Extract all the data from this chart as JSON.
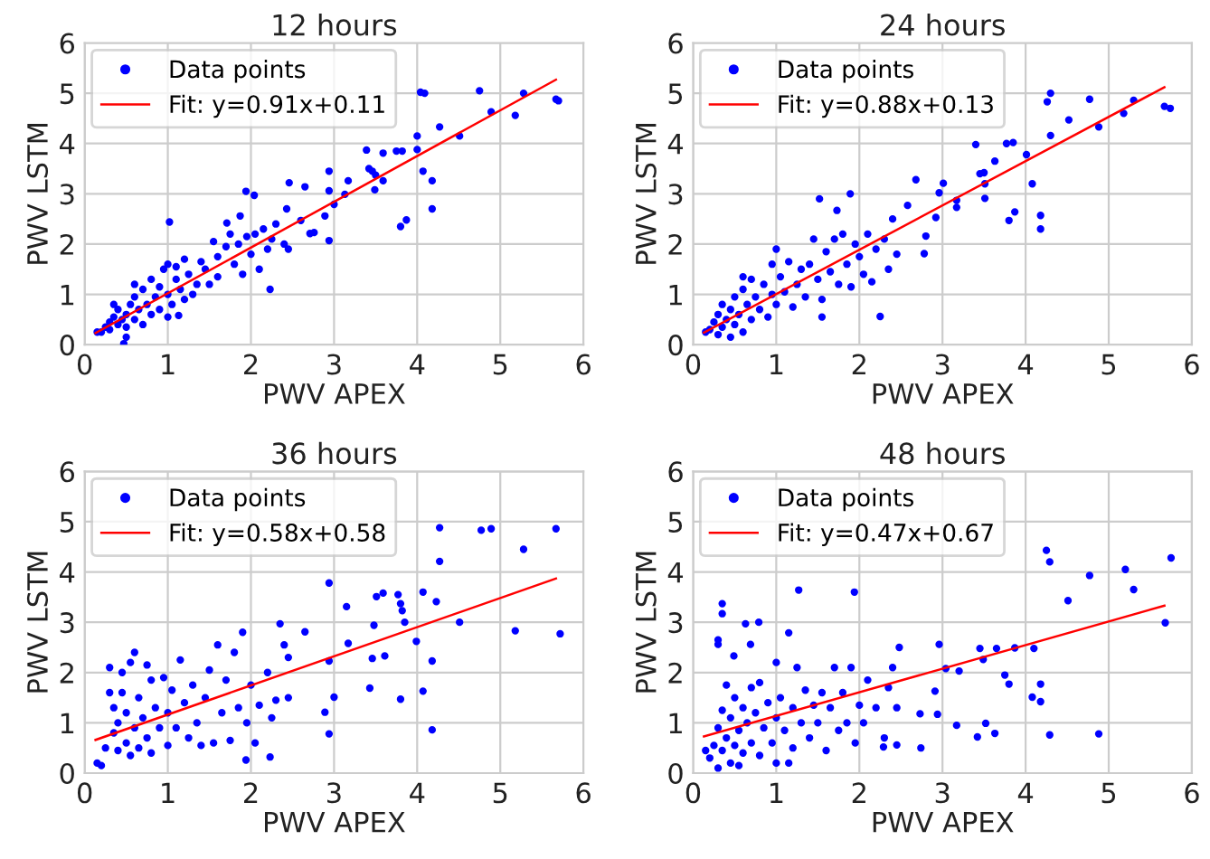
{
  "chart_data": [
    {
      "type": "scatter",
      "title": "12 hours",
      "xlabel": "PWV APEX",
      "ylabel": "PWV LSTM",
      "xlim": [
        0,
        6
      ],
      "ylim": [
        0,
        6
      ],
      "xticks": [
        0,
        1,
        2,
        3,
        4,
        5,
        6
      ],
      "yticks": [
        0,
        1,
        2,
        3,
        4,
        5,
        6
      ],
      "grid": true,
      "legend": "top left",
      "series": [
        {
          "name": "Data points",
          "color": "#0000ff",
          "marker": "circle",
          "x": [
            4.75,
            5.28,
            5.67,
            5.7,
            4.89,
            5.18,
            4.04,
            4.09,
            4.27,
            4.51,
            4.0,
            3.39,
            3.59,
            3.75,
            3.82,
            4.0,
            3.42,
            3.46,
            3.5,
            2.94,
            3.17,
            3.49,
            3.59,
            4.07,
            4.18,
            4.18,
            3.8,
            3.87,
            2.46,
            2.65,
            1.94,
            2.04,
            2.94,
            3.13,
            3.0,
            2.89,
            2.43,
            2.6,
            2.71,
            2.76,
            2.94,
            1.02,
            1.71,
            1.87,
            2.23,
            1.13,
            0.47,
            0.15,
            0.2,
            0.25,
            0.3,
            0.3,
            0.35,
            0.4,
            0.4,
            0.45,
            0.5,
            0.5,
            0.55,
            0.6,
            0.6,
            0.65,
            0.7,
            0.7,
            0.75,
            0.8,
            0.8,
            0.85,
            0.9,
            0.9,
            0.95,
            1.0,
            1.0,
            1.05,
            1.1,
            1.15,
            1.2,
            1.25,
            1.3,
            1.35,
            1.4,
            1.45,
            1.5,
            1.55,
            1.6,
            1.6,
            1.7,
            1.75,
            1.8,
            1.85,
            1.9,
            1.95,
            2.0,
            2.05,
            2.1,
            2.15,
            2.2,
            2.25,
            2.3,
            2.4,
            2.45,
            1.0,
            0.5,
            0.35,
            0.6,
            1.1,
            1.2
          ],
          "values": [
            5.05,
            5.0,
            4.88,
            4.85,
            4.63,
            4.56,
            5.02,
            5.0,
            4.33,
            4.15,
            4.15,
            3.87,
            3.81,
            3.85,
            3.85,
            3.88,
            3.5,
            3.45,
            3.37,
            3.45,
            3.26,
            3.08,
            3.26,
            3.45,
            3.26,
            2.7,
            2.35,
            2.48,
            3.22,
            3.14,
            3.05,
            2.97,
            3.06,
            2.99,
            2.79,
            2.56,
            2.7,
            2.47,
            2.21,
            2.23,
            2.07,
            2.44,
            2.42,
            2.56,
            1.1,
            0.58,
            0.02,
            0.25,
            0.25,
            0.35,
            0.45,
            0.3,
            0.55,
            0.4,
            0.7,
            0.5,
            0.6,
            0.35,
            0.8,
            0.5,
            0.95,
            0.7,
            0.4,
            1.1,
            0.8,
            0.6,
            1.3,
            0.95,
            0.7,
            1.15,
            1.5,
            1.0,
            1.6,
            0.8,
            1.3,
            1.1,
            0.9,
            1.4,
            1.0,
            1.2,
            1.65,
            1.5,
            1.2,
            2.05,
            1.75,
            1.35,
            1.95,
            2.2,
            1.6,
            2.0,
            1.4,
            2.15,
            1.8,
            2.2,
            1.5,
            2.3,
            1.9,
            2.1,
            2.4,
            2.0,
            1.9,
            0.55,
            0.15,
            0.8,
            1.2,
            1.55,
            1.7
          ]
        },
        {
          "name": "Fit: y=0.91x+0.11",
          "color": "#ff0000",
          "type": "line",
          "x": [
            0.13,
            5.67
          ],
          "values": [
            0.23,
            5.27
          ]
        }
      ]
    },
    {
      "type": "scatter",
      "title": "24 hours",
      "xlabel": "PWV APEX",
      "ylabel": "PWV LSTM",
      "xlim": [
        0,
        6
      ],
      "ylim": [
        0,
        6
      ],
      "xticks": [
        0,
        1,
        2,
        3,
        4,
        5,
        6
      ],
      "yticks": [
        0,
        1,
        2,
        3,
        4,
        5,
        6
      ],
      "grid": true,
      "legend": "top left",
      "series": [
        {
          "name": "Data points",
          "color": "#0000ff",
          "marker": "circle",
          "x": [
            4.3,
            4.26,
            4.77,
            5.3,
            5.67,
            5.74,
            4.52,
            4.88,
            5.18,
            4.3,
            4.01,
            3.4,
            3.77,
            3.85,
            3.45,
            3.5,
            3.63,
            2.68,
            3.01,
            2.96,
            3.51,
            4.08,
            3.51,
            3.17,
            3.17,
            3.87,
            3.8,
            4.18,
            4.18,
            2.92,
            2.8,
            2.78,
            2.58,
            1.52,
            1.89,
            2.25,
            1.73,
            0.15,
            0.2,
            0.25,
            0.3,
            0.3,
            0.35,
            0.35,
            0.4,
            0.45,
            0.45,
            0.5,
            0.5,
            0.55,
            0.6,
            0.6,
            0.65,
            0.7,
            0.7,
            0.75,
            0.8,
            0.85,
            0.9,
            0.95,
            0.95,
            1.0,
            1.0,
            1.05,
            1.1,
            1.15,
            1.2,
            1.25,
            1.3,
            1.35,
            1.4,
            1.45,
            1.5,
            1.55,
            1.6,
            1.65,
            1.7,
            1.75,
            1.8,
            1.85,
            1.9,
            1.95,
            2.0,
            2.05,
            2.1,
            2.15,
            2.2,
            2.3,
            2.35,
            2.4,
            2.45,
            1.55,
            0.6
          ],
          "values": [
            5.0,
            4.83,
            4.88,
            4.86,
            4.74,
            4.7,
            4.47,
            4.33,
            4.6,
            4.16,
            3.78,
            3.98,
            4.0,
            4.02,
            3.4,
            3.42,
            3.65,
            3.28,
            3.21,
            3.02,
            3.2,
            3.2,
            2.91,
            2.87,
            2.73,
            2.64,
            2.47,
            2.57,
            2.3,
            2.53,
            2.16,
            1.81,
            2.77,
            2.9,
            3.0,
            0.56,
            2.67,
            0.25,
            0.3,
            0.45,
            0.2,
            0.6,
            0.35,
            0.8,
            0.5,
            0.15,
            0.7,
            0.4,
            0.95,
            0.6,
            0.25,
            1.1,
            0.8,
            0.5,
            1.3,
            0.95,
            0.7,
            1.2,
            0.55,
            1.0,
            1.6,
            1.9,
            0.8,
            1.35,
            1.05,
            1.65,
            0.75,
            1.2,
            1.5,
            0.95,
            1.6,
            2.1,
            1.3,
            0.9,
            1.85,
            1.45,
            2.1,
            1.2,
            2.2,
            1.6,
            1.15,
            2.0,
            1.75,
            1.4,
            2.2,
            1.25,
            1.9,
            2.1,
            1.5,
            2.5,
            1.8,
            0.55,
            1.35
          ]
        },
        {
          "name": "Fit: y=0.88x+0.13",
          "color": "#ff0000",
          "type": "line",
          "x": [
            0.13,
            5.67
          ],
          "values": [
            0.24,
            5.12
          ]
        }
      ]
    },
    {
      "type": "scatter",
      "title": "36 hours",
      "xlabel": "PWV APEX",
      "ylabel": "PWV LSTM",
      "xlim": [
        0,
        6
      ],
      "ylim": [
        0,
        6
      ],
      "xticks": [
        0,
        1,
        2,
        3,
        4,
        5,
        6
      ],
      "yticks": [
        0,
        1,
        2,
        3,
        4,
        5,
        6
      ],
      "grid": true,
      "legend": "top left",
      "series": [
        {
          "name": "Data points",
          "color": "#0000ff",
          "marker": "circle",
          "x": [
            4.27,
            4.77,
            4.89,
            5.67,
            5.28,
            4.27,
            2.94,
            3.59,
            3.51,
            3.77,
            3.8,
            3.82,
            4.07,
            4.23,
            2.35,
            3.15,
            3.48,
            3.85,
            4.51,
            5.18,
            5.72,
            3.99,
            3.17,
            2.65,
            3.46,
            3.61,
            4.18,
            2.94,
            3.43,
            3.8,
            4.07,
            4.18,
            2.94,
            3.0,
            2.89,
            1.94,
            2.23,
            0.15,
            0.2,
            0.25,
            0.3,
            0.3,
            0.35,
            0.35,
            0.4,
            0.4,
            0.45,
            0.45,
            0.5,
            0.5,
            0.55,
            0.55,
            0.6,
            0.6,
            0.65,
            0.65,
            0.7,
            0.75,
            0.75,
            0.8,
            0.8,
            0.85,
            0.9,
            0.95,
            1.0,
            1.0,
            1.05,
            1.1,
            1.15,
            1.2,
            1.25,
            1.3,
            1.35,
            1.4,
            1.45,
            1.5,
            1.55,
            1.6,
            1.65,
            1.7,
            1.75,
            1.8,
            1.85,
            1.9,
            1.95,
            2.0,
            2.05,
            2.1,
            2.2,
            2.25,
            2.3,
            2.4,
            2.45,
            2.45
          ],
          "values": [
            4.88,
            4.83,
            4.86,
            4.86,
            4.45,
            4.21,
            3.78,
            3.58,
            3.51,
            3.55,
            3.37,
            3.23,
            3.6,
            3.41,
            2.97,
            3.31,
            2.94,
            3.0,
            3.0,
            2.83,
            2.77,
            2.62,
            2.58,
            2.81,
            2.28,
            2.33,
            2.23,
            2.23,
            1.69,
            1.47,
            1.63,
            0.86,
            0.78,
            1.51,
            1.21,
            0.26,
            0.32,
            0.2,
            0.15,
            0.5,
            2.1,
            1.6,
            0.8,
            1.3,
            0.45,
            1.0,
            2.0,
            1.6,
            0.6,
            1.2,
            2.2,
            0.35,
            2.4,
            0.9,
            1.5,
            0.5,
            1.1,
            2.15,
            0.7,
            1.85,
            0.4,
            1.3,
            0.9,
            1.9,
            0.55,
            1.2,
            1.65,
            0.9,
            2.25,
            1.4,
            0.7,
            1.75,
            1.0,
            0.55,
            1.5,
            2.05,
            0.6,
            2.55,
            1.2,
            1.85,
            0.65,
            2.4,
            1.3,
            2.8,
            1.0,
            1.75,
            0.6,
            1.35,
            2.0,
            1.1,
            1.45,
            2.55,
            1.5,
            2.3
          ]
        },
        {
          "name": "Fit: y=0.58x+0.58",
          "color": "#ff0000",
          "type": "line",
          "x": [
            0.13,
            5.67
          ],
          "values": [
            0.66,
            3.87
          ]
        }
      ]
    },
    {
      "type": "scatter",
      "title": "48 hours",
      "xlabel": "PWV APEX",
      "ylabel": "PWV LSTM",
      "xlim": [
        0,
        6
      ],
      "ylim": [
        0,
        6
      ],
      "xticks": [
        0,
        1,
        2,
        3,
        4,
        5,
        6
      ],
      "yticks": [
        0,
        1,
        2,
        3,
        4,
        5,
        6
      ],
      "grid": true,
      "legend": "top left",
      "series": [
        {
          "name": "Data points",
          "color": "#0000ff",
          "marker": "circle",
          "x": [
            4.25,
            4.29,
            4.77,
            5.2,
            5.3,
            5.75,
            4.51,
            5.68,
            1.27,
            1.94,
            0.35,
            0.35,
            0.3,
            0.3,
            0.63,
            0.79,
            1.15,
            0.49,
            0.69,
            2.96,
            2.48,
            3.45,
            3.65,
            3.87,
            4.1,
            3.49,
            3.04,
            3.2,
            3.75,
            3.8,
            4.18,
            4.18,
            4.08,
            2.91,
            2.94,
            2.73,
            3.17,
            3.42,
            3.52,
            3.63,
            4.29,
            4.88,
            2.74,
            2.45,
            2.29,
            0.15,
            0.2,
            0.25,
            0.3,
            0.3,
            0.35,
            0.35,
            0.4,
            0.4,
            0.45,
            0.45,
            0.5,
            0.5,
            0.55,
            0.55,
            0.6,
            0.6,
            0.65,
            0.7,
            0.7,
            0.75,
            0.8,
            0.8,
            0.85,
            0.9,
            0.95,
            1.0,
            1.0,
            1.0,
            1.05,
            1.1,
            1.15,
            1.2,
            1.2,
            1.25,
            1.3,
            1.35,
            1.4,
            1.45,
            1.5,
            1.55,
            1.6,
            1.65,
            1.7,
            1.75,
            1.8,
            1.85,
            1.9,
            1.95,
            2.0,
            2.05,
            2.1,
            2.2,
            2.3,
            2.35,
            2.4,
            2.45
          ],
          "values": [
            4.43,
            4.2,
            3.93,
            4.05,
            3.65,
            4.28,
            3.43,
            2.99,
            3.64,
            3.6,
            3.37,
            3.17,
            2.65,
            2.56,
            2.97,
            3.0,
            2.79,
            2.33,
            2.56,
            2.56,
            2.5,
            2.48,
            2.48,
            2.49,
            2.48,
            2.26,
            2.08,
            2.03,
            1.95,
            1.77,
            1.77,
            1.42,
            1.51,
            1.63,
            1.17,
            1.18,
            0.95,
            0.72,
            0.99,
            0.79,
            0.76,
            0.78,
            0.5,
            0.56,
            0.52,
            0.45,
            0.3,
            0.55,
            0.1,
            0.9,
            1.25,
            0.45,
            0.7,
            1.75,
            0.2,
            1.1,
            0.55,
            1.5,
            0.85,
            0.15,
            1.3,
            0.4,
            1.0,
            1.7,
            0.6,
            1.2,
            0.35,
            1.8,
            0.9,
            1.4,
            0.6,
            2.2,
            1.1,
            0.2,
            1.5,
            0.85,
            0.2,
            1.3,
            0.5,
            2.1,
            1.0,
            1.65,
            0.7,
            1.35,
            1.0,
            1.6,
            0.45,
            1.3,
            2.1,
            0.85,
            1.6,
            1.0,
            2.1,
            0.6,
            1.35,
            1.0,
            1.85,
            1.3,
            0.7,
            1.7,
            2.1,
            1.3
          ]
        },
        {
          "name": "Fit: y=0.47x+0.67",
          "color": "#ff0000",
          "type": "line",
          "x": [
            0.13,
            5.67
          ],
          "values": [
            0.73,
            3.33
          ]
        }
      ]
    }
  ]
}
